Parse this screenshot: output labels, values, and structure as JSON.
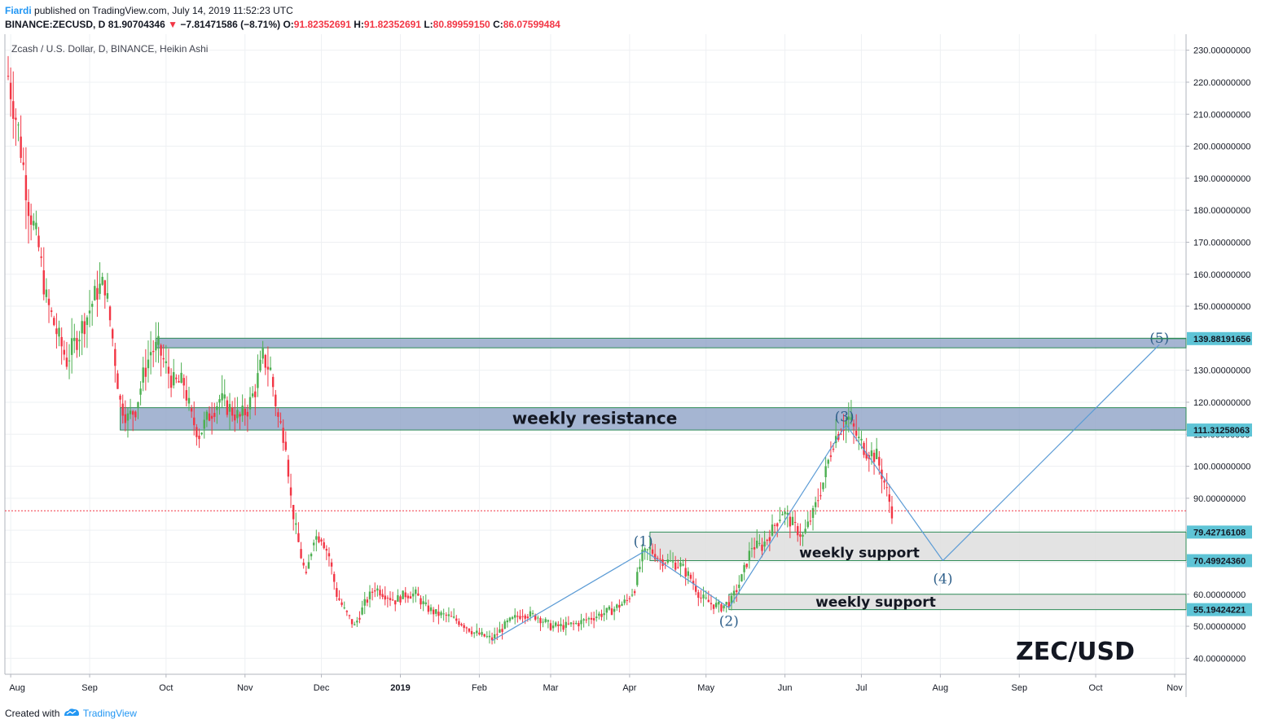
{
  "header": {
    "author": "Fiardi",
    "published_text": "published on TradingView.com, July 14, 2019 11:52:23 UTC",
    "symbol": "BINANCE:ZECUSD, D",
    "last_price": "81.90704346",
    "change_arrow": "▼",
    "change": "−7.81471586 (−8.71%)",
    "o_label": "O:",
    "o_value": "91.82352691",
    "h_label": "H:",
    "h_value": "91.82352691",
    "l_label": "L:",
    "l_value": "80.89959150",
    "c_label": "C:",
    "c_value": "86.07599484"
  },
  "footer": {
    "created_with": "Created with",
    "brand": "TradingView"
  },
  "colors": {
    "up": "#26a69a",
    "up_candle": "#4caf50",
    "down": "#f23645",
    "zone_blue": "#8fa3c7",
    "zone_gray": "#e0e0e0",
    "wave_line": "#5b9bd5",
    "wave_text": "#2e5f8a",
    "axis_label_bg": "#5ec4d6"
  },
  "chart_data": {
    "type": "candlestick",
    "legend": "Zcash / U.S. Dollar, D, BINANCE, Heikin Ashi",
    "watermark": "ZEC/USD",
    "ylim": [
      35,
      235
    ],
    "y_ticks": [
      {
        "value": 230,
        "label": "230.00000000"
      },
      {
        "value": 220,
        "label": "220.00000000"
      },
      {
        "value": 210,
        "label": "210.00000000"
      },
      {
        "value": 200,
        "label": "200.00000000"
      },
      {
        "value": 190,
        "label": "190.00000000"
      },
      {
        "value": 180,
        "label": "180.00000000"
      },
      {
        "value": 170,
        "label": "170.00000000"
      },
      {
        "value": 160,
        "label": "160.00000000"
      },
      {
        "value": 150,
        "label": "150.00000000"
      },
      {
        "value": 140,
        "label": "140.00000000"
      },
      {
        "value": 130,
        "label": "130.00000000"
      },
      {
        "value": 120,
        "label": "120.00000000"
      },
      {
        "value": 110,
        "label": "110.00000000"
      },
      {
        "value": 100,
        "label": "100.00000000"
      },
      {
        "value": 90,
        "label": "90.00000000"
      },
      {
        "value": 80,
        "label": "80.00000000"
      },
      {
        "value": 70,
        "label": "70.00000000"
      },
      {
        "value": 60,
        "label": "60.00000000"
      },
      {
        "value": 50,
        "label": "50.00000000"
      },
      {
        "value": 40,
        "label": "40.00000000"
      }
    ],
    "x_ticks": [
      {
        "date": "2018-08-01",
        "label": "Aug"
      },
      {
        "date": "2018-09-01",
        "label": "Sep"
      },
      {
        "date": "2018-10-01",
        "label": "Oct"
      },
      {
        "date": "2018-11-01",
        "label": "Nov"
      },
      {
        "date": "2018-12-01",
        "label": "Dec"
      },
      {
        "date": "2019-01-01",
        "label": "2019"
      },
      {
        "date": "2019-02-01",
        "label": "Feb"
      },
      {
        "date": "2019-03-01",
        "label": "Mar"
      },
      {
        "date": "2019-04-01",
        "label": "Apr"
      },
      {
        "date": "2019-05-01",
        "label": "May"
      },
      {
        "date": "2019-06-01",
        "label": "Jun"
      },
      {
        "date": "2019-07-01",
        "label": "Jul"
      },
      {
        "date": "2019-08-01",
        "label": "Aug"
      },
      {
        "date": "2019-09-01",
        "label": "Sep"
      },
      {
        "date": "2019-10-01",
        "label": "Oct"
      },
      {
        "date": "2019-11-01",
        "label": "Nov"
      }
    ],
    "price_path": [
      [
        "2018-07-31",
        222
      ],
      [
        "2018-08-04",
        205
      ],
      [
        "2018-08-08",
        182
      ],
      [
        "2018-08-12",
        168
      ],
      [
        "2018-08-15",
        152
      ],
      [
        "2018-08-19",
        142
      ],
      [
        "2018-08-23",
        133
      ],
      [
        "2018-08-27",
        140
      ],
      [
        "2018-08-31",
        147
      ],
      [
        "2018-09-04",
        155
      ],
      [
        "2018-09-07",
        157
      ],
      [
        "2018-09-10",
        140
      ],
      [
        "2018-09-13",
        120
      ],
      [
        "2018-09-16",
        115
      ],
      [
        "2018-09-19",
        118
      ],
      [
        "2018-09-22",
        128
      ],
      [
        "2018-09-25",
        136
      ],
      [
        "2018-09-28",
        137
      ],
      [
        "2018-10-01",
        131
      ],
      [
        "2018-10-04",
        126
      ],
      [
        "2018-10-08",
        126
      ],
      [
        "2018-10-11",
        115
      ],
      [
        "2018-10-14",
        110
      ],
      [
        "2018-10-18",
        116
      ],
      [
        "2018-10-22",
        121
      ],
      [
        "2018-10-26",
        118
      ],
      [
        "2018-10-30",
        115
      ],
      [
        "2018-11-02",
        118
      ],
      [
        "2018-11-05",
        124
      ],
      [
        "2018-11-08",
        134
      ],
      [
        "2018-11-11",
        130
      ],
      [
        "2018-11-14",
        115
      ],
      [
        "2018-11-17",
        108
      ],
      [
        "2018-11-19",
        90
      ],
      [
        "2018-11-21",
        80
      ],
      [
        "2018-11-23",
        72
      ],
      [
        "2018-11-25",
        65
      ],
      [
        "2018-11-28",
        78
      ],
      [
        "2018-12-01",
        78
      ],
      [
        "2018-12-04",
        72
      ],
      [
        "2018-12-07",
        60
      ],
      [
        "2018-12-10",
        55
      ],
      [
        "2018-12-14",
        50
      ],
      [
        "2018-12-18",
        57
      ],
      [
        "2018-12-22",
        62
      ],
      [
        "2018-12-26",
        60
      ],
      [
        "2018-12-30",
        58
      ],
      [
        "2019-01-03",
        60
      ],
      [
        "2019-01-07",
        60
      ],
      [
        "2019-01-11",
        56
      ],
      [
        "2019-01-15",
        54
      ],
      [
        "2019-01-20",
        53
      ],
      [
        "2019-01-25",
        51
      ],
      [
        "2019-01-30",
        48
      ],
      [
        "2019-02-06",
        46
      ],
      [
        "2019-02-12",
        51
      ],
      [
        "2019-02-18",
        54
      ],
      [
        "2019-02-24",
        53
      ],
      [
        "2019-03-01",
        50
      ],
      [
        "2019-03-06",
        50
      ],
      [
        "2019-03-12",
        51
      ],
      [
        "2019-03-18",
        53
      ],
      [
        "2019-03-25",
        55
      ],
      [
        "2019-03-31",
        58
      ],
      [
        "2019-04-03",
        62
      ],
      [
        "2019-04-06",
        72
      ],
      [
        "2019-04-09",
        74
      ],
      [
        "2019-04-13",
        71
      ],
      [
        "2019-04-17",
        70
      ],
      [
        "2019-04-21",
        69
      ],
      [
        "2019-04-25",
        65
      ],
      [
        "2019-04-29",
        59
      ],
      [
        "2019-05-03",
        57
      ],
      [
        "2019-05-07",
        56
      ],
      [
        "2019-05-11",
        58
      ],
      [
        "2019-05-15",
        65
      ],
      [
        "2019-05-19",
        75
      ],
      [
        "2019-05-23",
        75
      ],
      [
        "2019-05-27",
        80
      ],
      [
        "2019-05-31",
        86
      ],
      [
        "2019-06-04",
        82
      ],
      [
        "2019-06-08",
        78
      ],
      [
        "2019-06-12",
        85
      ],
      [
        "2019-06-16",
        95
      ],
      [
        "2019-06-20",
        108
      ],
      [
        "2019-06-23",
        112
      ],
      [
        "2019-06-26",
        115
      ],
      [
        "2019-06-30",
        108
      ],
      [
        "2019-07-03",
        105
      ],
      [
        "2019-07-07",
        103
      ],
      [
        "2019-07-10",
        95
      ],
      [
        "2019-07-13",
        86
      ]
    ],
    "zones": [
      {
        "low": 137,
        "high": 140,
        "start": "2018-09-27",
        "end": "2019-11-01",
        "color": "blue"
      },
      {
        "low": 111.31258063,
        "high": 118.3,
        "start": "2018-09-13",
        "end": "2019-11-01",
        "color": "blue",
        "text": "weekly resistance"
      },
      {
        "low": 70.4992436,
        "high": 79.42716108,
        "start": "2019-04-09",
        "end": "2019-11-01",
        "color": "gray",
        "text": "weekly support"
      },
      {
        "low": 55.19424221,
        "high": 60,
        "start": "2019-05-10",
        "end": "2019-11-01",
        "color": "gray",
        "text": "weekly support"
      }
    ],
    "wave_points": [
      {
        "date": "2019-02-06",
        "value": 45.5
      },
      {
        "date": "2019-04-07",
        "value": 73.5,
        "label": "(1)"
      },
      {
        "date": "2019-05-10",
        "value": 55.8,
        "label": "(2)"
      },
      {
        "date": "2019-06-25",
        "value": 113,
        "label": "(3)"
      },
      {
        "date": "2019-08-02",
        "value": 70.5,
        "label": "(4)"
      },
      {
        "date": "2019-10-26",
        "value": 138,
        "label": "(5)"
      }
    ],
    "current_price": 86.07599484,
    "price_labels": [
      {
        "value": 139.88191656,
        "label": "139.88191656"
      },
      {
        "value": 111.31258063,
        "label": "111.31258063"
      },
      {
        "value": 79.42716108,
        "label": "79.42716108"
      },
      {
        "value": 70.4992436,
        "label": "70.49924360"
      },
      {
        "value": 55.19424221,
        "label": "55.19424221"
      }
    ]
  }
}
